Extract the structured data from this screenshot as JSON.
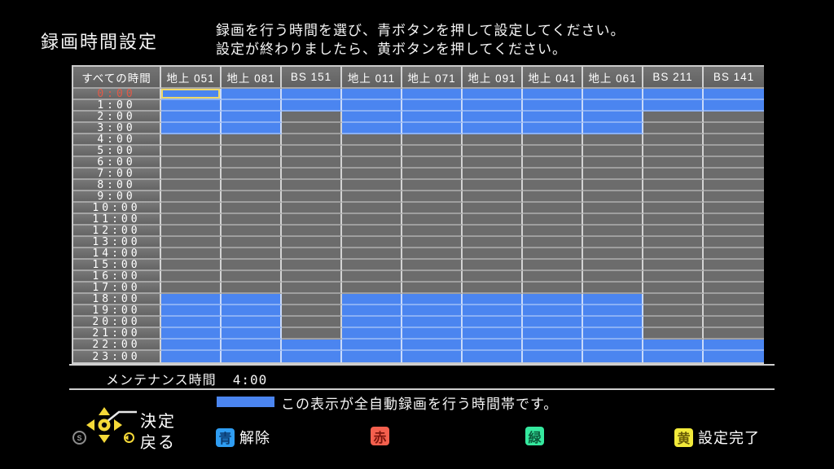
{
  "title": "録画時間設定",
  "instructions": {
    "line1": "録画を行う時間を選び、青ボタンを押して設定してください。",
    "line2": "設定が終わりましたら、黄ボタンを押してください。"
  },
  "grid": {
    "time_header": "すべての時間",
    "channels": [
      "地上 051",
      "地上 081",
      "BS 151",
      "地上 011",
      "地上 071",
      "地上 091",
      "地上 041",
      "地上 061",
      "BS 211",
      "BS 141"
    ],
    "times": [
      "0:00",
      "1:00",
      "2:00",
      "3:00",
      "4:00",
      "5:00",
      "6:00",
      "7:00",
      "8:00",
      "9:00",
      "10:00",
      "11:00",
      "12:00",
      "13:00",
      "14:00",
      "15:00",
      "16:00",
      "17:00",
      "18:00",
      "19:00",
      "20:00",
      "21:00",
      "22:00",
      "23:00"
    ],
    "selected": {
      "row": 0,
      "col": 0
    },
    "recording": [
      [
        1,
        1,
        1,
        1,
        1,
        1,
        1,
        1,
        1,
        1
      ],
      [
        1,
        1,
        1,
        1,
        1,
        1,
        1,
        1,
        1,
        1
      ],
      [
        1,
        1,
        0,
        1,
        1,
        1,
        1,
        1,
        0,
        0
      ],
      [
        1,
        1,
        0,
        1,
        1,
        1,
        1,
        1,
        0,
        0
      ],
      [
        0,
        0,
        0,
        0,
        0,
        0,
        0,
        0,
        0,
        0
      ],
      [
        0,
        0,
        0,
        0,
        0,
        0,
        0,
        0,
        0,
        0
      ],
      [
        0,
        0,
        0,
        0,
        0,
        0,
        0,
        0,
        0,
        0
      ],
      [
        0,
        0,
        0,
        0,
        0,
        0,
        0,
        0,
        0,
        0
      ],
      [
        0,
        0,
        0,
        0,
        0,
        0,
        0,
        0,
        0,
        0
      ],
      [
        0,
        0,
        0,
        0,
        0,
        0,
        0,
        0,
        0,
        0
      ],
      [
        0,
        0,
        0,
        0,
        0,
        0,
        0,
        0,
        0,
        0
      ],
      [
        0,
        0,
        0,
        0,
        0,
        0,
        0,
        0,
        0,
        0
      ],
      [
        0,
        0,
        0,
        0,
        0,
        0,
        0,
        0,
        0,
        0
      ],
      [
        0,
        0,
        0,
        0,
        0,
        0,
        0,
        0,
        0,
        0
      ],
      [
        0,
        0,
        0,
        0,
        0,
        0,
        0,
        0,
        0,
        0
      ],
      [
        0,
        0,
        0,
        0,
        0,
        0,
        0,
        0,
        0,
        0
      ],
      [
        0,
        0,
        0,
        0,
        0,
        0,
        0,
        0,
        0,
        0
      ],
      [
        0,
        0,
        0,
        0,
        0,
        0,
        0,
        0,
        0,
        0
      ],
      [
        1,
        1,
        0,
        1,
        1,
        1,
        1,
        1,
        0,
        0
      ],
      [
        1,
        1,
        0,
        1,
        1,
        1,
        1,
        1,
        0,
        0
      ],
      [
        1,
        1,
        0,
        1,
        1,
        1,
        1,
        1,
        0,
        0
      ],
      [
        1,
        1,
        0,
        1,
        1,
        1,
        1,
        1,
        0,
        0
      ],
      [
        1,
        1,
        1,
        1,
        1,
        1,
        1,
        1,
        1,
        1
      ],
      [
        1,
        1,
        1,
        1,
        1,
        1,
        1,
        1,
        1,
        1
      ]
    ]
  },
  "maintenance": {
    "label": "メンテナンス時間",
    "value": "4:00"
  },
  "legend": {
    "text": "この表示が全自動録画を行う時間帯です。"
  },
  "controls": {
    "s_label": "S",
    "decide_label": "決定",
    "back_label": "戻る",
    "buttons": [
      {
        "key": "青",
        "label": "解除",
        "color": "#2f9df2",
        "text_color": "#0a3a70"
      },
      {
        "key": "赤",
        "label": "",
        "color": "#f4604e",
        "text_color": "#7c150c"
      },
      {
        "key": "緑",
        "label": "",
        "color": "#35e89e",
        "text_color": "#0b5c3c"
      },
      {
        "key": "黄",
        "label": "設定完了",
        "color": "#f2ea3a",
        "text_color": "#6b5e08"
      }
    ]
  },
  "colors": {
    "recording_blue": "#4b85f0",
    "cell_gray": "#6c6c6c",
    "cursor_yellow": "#eed868",
    "selected_time_red": "#e05a48"
  }
}
